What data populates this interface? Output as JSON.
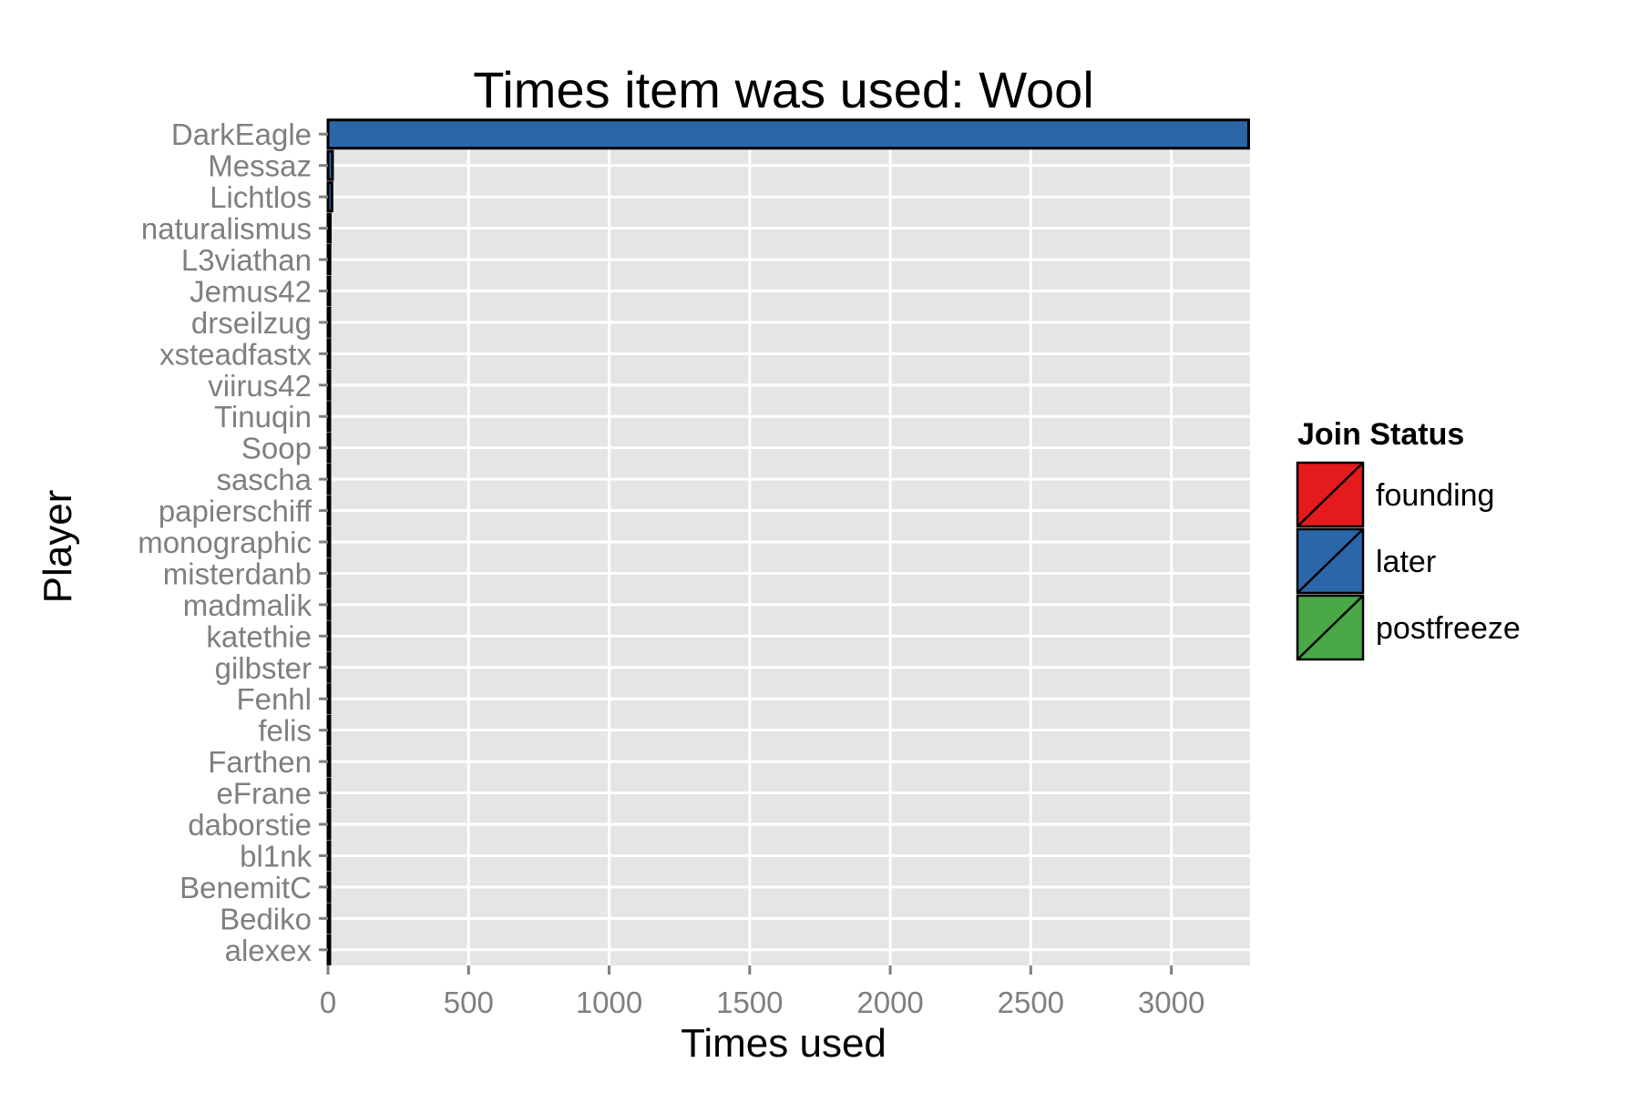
{
  "chart_data": {
    "type": "bar",
    "orientation": "horizontal",
    "title": "Times item was used: Wool",
    "xlabel": "Times used",
    "ylabel": "Player",
    "xlim": [
      0,
      3280
    ],
    "x_ticks": [
      0,
      500,
      1000,
      1500,
      2000,
      2500,
      3000
    ],
    "grid": true,
    "legend": {
      "title": "Join Status",
      "position": "right",
      "entries": [
        {
          "label": "founding",
          "color": "#e41a1c"
        },
        {
          "label": "later",
          "color": "#2b67a8"
        },
        {
          "label": "postfreeze",
          "color": "#4aa847"
        }
      ]
    },
    "categories": [
      "DarkEagle",
      "Messaz",
      "Lichtlos",
      "naturalismus",
      "L3viathan",
      "Jemus42",
      "drseilzug",
      "xsteadfastx",
      "viirus42",
      "Tinuqin",
      "Soop",
      "sascha",
      "papierschiff",
      "monographic",
      "misterdanb",
      "madmalik",
      "katethie",
      "gilbster",
      "Fenhl",
      "felis",
      "Farthen",
      "eFrane",
      "daborstie",
      "bl1nk",
      "BenemitC",
      "Bediko",
      "alexex"
    ],
    "values": [
      3275,
      16,
      14,
      8,
      7,
      6,
      6,
      5,
      5,
      4,
      4,
      4,
      3,
      3,
      3,
      3,
      3,
      3,
      2,
      2,
      2,
      2,
      2,
      1,
      1,
      1,
      1
    ],
    "status": [
      "later",
      "later",
      "later",
      "later",
      "later",
      "later",
      "later",
      "later",
      "later",
      "later",
      "later",
      "later",
      "later",
      "later",
      "later",
      "later",
      "later",
      "later",
      "later",
      "later",
      "later",
      "later",
      "later",
      "later",
      "later",
      "later",
      "later"
    ]
  },
  "colors": {
    "panel_background": "#e5e5e5",
    "grid": "#ffffff",
    "bar_outline": "#000000"
  }
}
